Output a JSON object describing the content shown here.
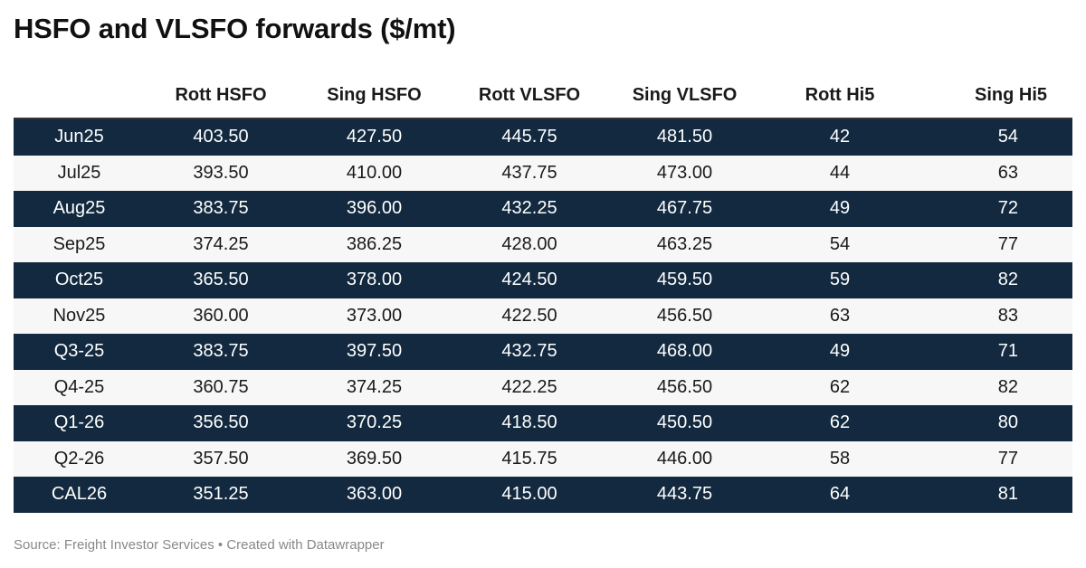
{
  "title": "HSFO and VLSFO forwards ($/mt)",
  "source": "Source: Freight Investor Services • Created with Datawrapper",
  "colors": {
    "dark_row": "#12293f",
    "light_row": "#f7f7f7",
    "header_rule": "#333333"
  },
  "chart_data": {
    "type": "table",
    "title": "HSFO and VLSFO forwards ($/mt)",
    "columns": [
      "",
      "Rott HSFO",
      "Sing HSFO",
      "Rott VLSFO",
      "Sing VLSFO",
      "Rott Hi5",
      "Sing Hi5"
    ],
    "rows": [
      [
        "Jun25",
        "403.50",
        "427.50",
        "445.75",
        "481.50",
        "42",
        "54"
      ],
      [
        "Jul25",
        "393.50",
        "410.00",
        "437.75",
        "473.00",
        "44",
        "63"
      ],
      [
        "Aug25",
        "383.75",
        "396.00",
        "432.25",
        "467.75",
        "49",
        "72"
      ],
      [
        "Sep25",
        "374.25",
        "386.25",
        "428.00",
        "463.25",
        "54",
        "77"
      ],
      [
        "Oct25",
        "365.50",
        "378.00",
        "424.50",
        "459.50",
        "59",
        "82"
      ],
      [
        "Nov25",
        "360.00",
        "373.00",
        "422.50",
        "456.50",
        "63",
        "83"
      ],
      [
        "Q3-25",
        "383.75",
        "397.50",
        "432.75",
        "468.00",
        "49",
        "71"
      ],
      [
        "Q4-25",
        "360.75",
        "374.25",
        "422.25",
        "456.50",
        "62",
        "82"
      ],
      [
        "Q1-26",
        "356.50",
        "370.25",
        "418.50",
        "450.50",
        "62",
        "80"
      ],
      [
        "Q2-26",
        "357.50",
        "369.50",
        "415.75",
        "446.00",
        "58",
        "77"
      ],
      [
        "CAL26",
        "351.25",
        "363.00",
        "415.00",
        "443.75",
        "64",
        "81"
      ]
    ]
  }
}
